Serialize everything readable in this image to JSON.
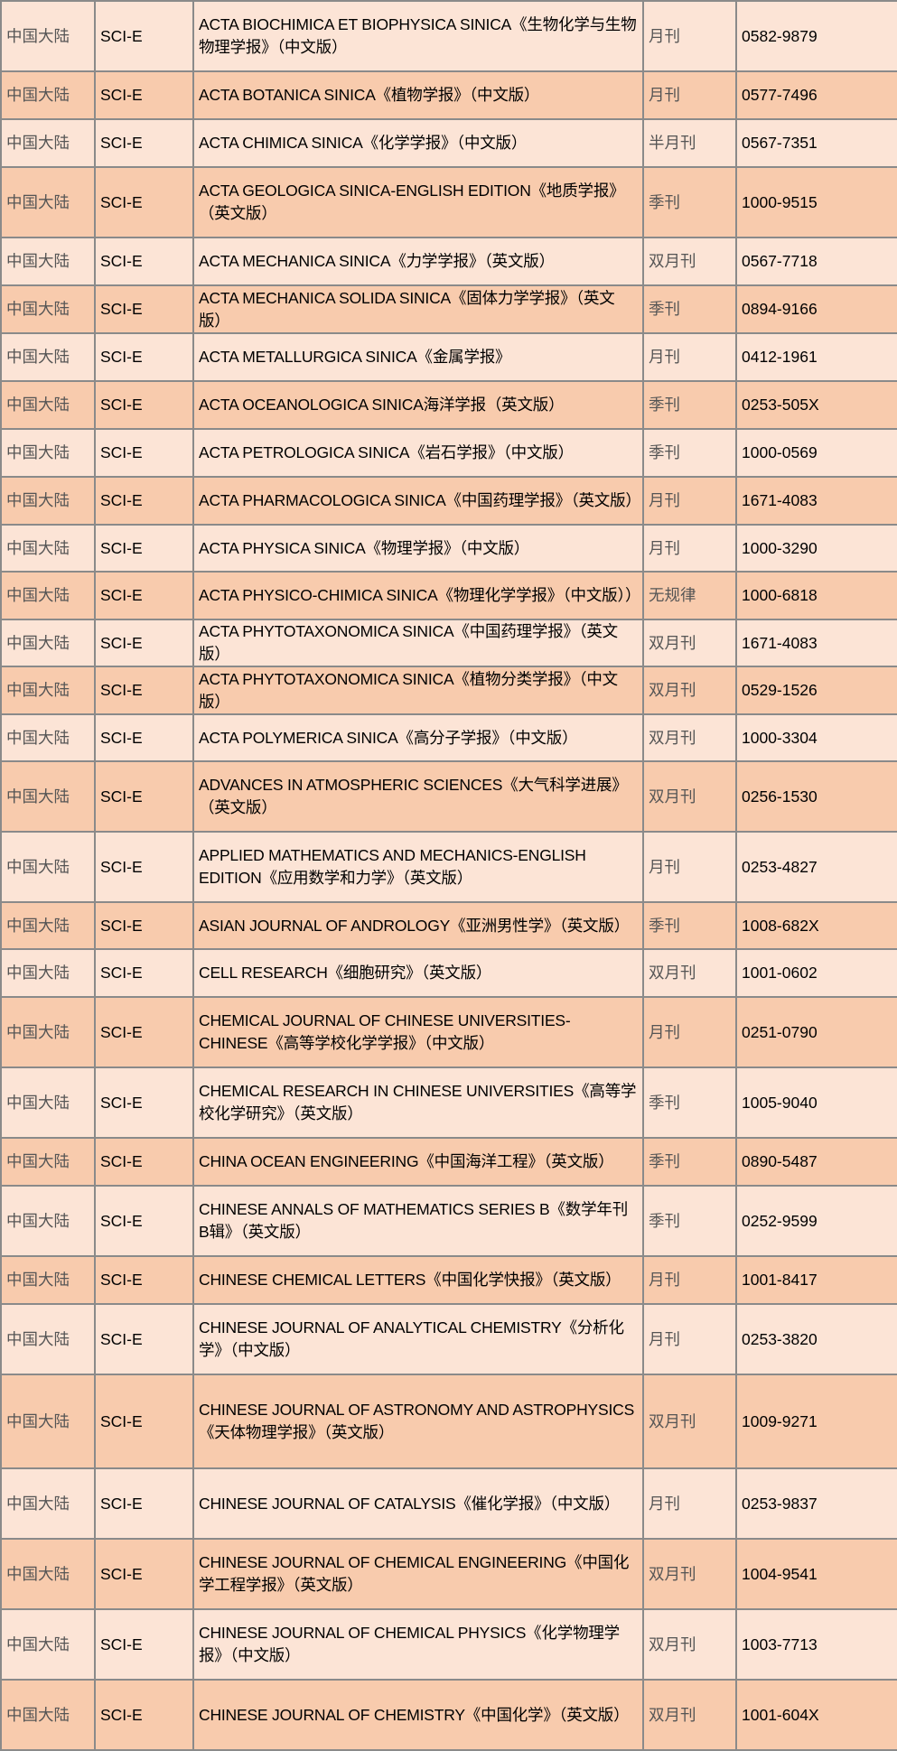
{
  "colors": {
    "light_row": "#fce4d6",
    "dark_row": "#f8cbad",
    "border": "#8a8a8a"
  },
  "rows": [
    {
      "region": "中国大陆",
      "index": "SCI-E",
      "title": "ACTA BIOCHIMICA ET BIOPHYSICA SINICA《生物化学与生物物理学报》（中文版）",
      "frequency": "月刊",
      "issn": "0582-9879",
      "h": 78
    },
    {
      "region": "中国大陆",
      "index": "SCI-E",
      "title": "ACTA BOTANICA SINICA《植物学报》（中文版）",
      "frequency": "月刊",
      "issn": "0577-7496",
      "h": 53
    },
    {
      "region": "中国大陆",
      "index": "SCI-E",
      "title": "ACTA CHIMICA SINICA《化学学报》（中文版）",
      "frequency": "半月刊",
      "issn": "0567-7351",
      "h": 53
    },
    {
      "region": "中国大陆",
      "index": "SCI-E",
      "title": "ACTA GEOLOGICA SINICA-ENGLISH EDITION《地质学报》（英文版）",
      "frequency": "季刊",
      "issn": "1000-9515",
      "h": 78
    },
    {
      "region": "中国大陆",
      "index": "SCI-E",
      "title": "ACTA MECHANICA SINICA《力学学报》（英文版）",
      "frequency": "双月刊",
      "issn": "0567-7718",
      "h": 53
    },
    {
      "region": "中国大陆",
      "index": "SCI-E",
      "title": "ACTA MECHANICA SOLIDA SINICA《固体力学学报》（英文版）",
      "frequency": "季刊",
      "issn": "0894-9166",
      "h": 53
    },
    {
      "region": "中国大陆",
      "index": "SCI-E",
      "title": "ACTA METALLURGICA SINICA《金属学报》",
      "frequency": "月刊",
      "issn": "0412-1961",
      "h": 53
    },
    {
      "region": "中国大陆",
      "index": "SCI-E",
      "title": "ACTA OCEANOLOGICA SINICA海洋学报（英文版）",
      "frequency": "季刊",
      "issn": "0253-505X",
      "h": 53
    },
    {
      "region": "中国大陆",
      "index": "SCI-E",
      "title": "ACTA PETROLOGICA SINICA《岩石学报》（中文版）",
      "frequency": "季刊",
      "issn": "1000-0569",
      "h": 53
    },
    {
      "region": "中国大陆",
      "index": "SCI-E",
      "title": "ACTA PHARMACOLOGICA SINICA《中国药理学报》（英文版）",
      "frequency": "月刊",
      "issn": "1671-4083",
      "h": 53
    },
    {
      "region": "中国大陆",
      "index": "SCI-E",
      "title": "ACTA PHYSICA SINICA《物理学报》（中文版）",
      "frequency": "月刊",
      "issn": "1000-3290",
      "h": 52
    },
    {
      "region": "中国大陆",
      "index": "SCI-E",
      "title": "ACTA PHYSICO-CHIMICA SINICA《物理化学学报》（中文版））",
      "frequency": "无规律",
      "issn": "1000-6818",
      "h": 53
    },
    {
      "region": "中国大陆",
      "index": "SCI-E",
      "title": "ACTA PHYTOTAXONOMICA SINICA《中国药理学报》（英文版）",
      "frequency": "双月刊",
      "issn": "1671-4083",
      "h": 52
    },
    {
      "region": "中国大陆",
      "index": "SCI-E",
      "title": "ACTA PHYTOTAXONOMICA SINICA《植物分类学报》（中文版）",
      "frequency": "双月刊",
      "issn": "0529-1526",
      "h": 53
    },
    {
      "region": "中国大陆",
      "index": "SCI-E",
      "title": "ACTA POLYMERICA SINICA《高分子学报》（中文版）",
      "frequency": "双月刊",
      "issn": "1000-3304",
      "h": 52
    },
    {
      "region": "中国大陆",
      "index": "SCI-E",
      "title": "ADVANCES IN ATMOSPHERIC SCIENCES《大气科学进展》（英文版）",
      "frequency": "双月刊",
      "issn": "0256-1530",
      "h": 78
    },
    {
      "region": "中国大陆",
      "index": "SCI-E",
      "title": "APPLIED MATHEMATICS AND MECHANICS-ENGLISH EDITION《应用数学和力学》（英文版）",
      "frequency": "月刊",
      "issn": "0253-4827",
      "h": 78
    },
    {
      "region": "中国大陆",
      "index": "SCI-E",
      "title": "ASIAN JOURNAL OF ANDROLOGY《亚洲男性学》（英文版）",
      "frequency": "季刊",
      "issn": "1008-682X",
      "h": 52
    },
    {
      "region": "中国大陆",
      "index": "SCI-E",
      "title": "CELL RESEARCH《细胞研究》（英文版）",
      "frequency": "双月刊",
      "issn": "1001-0602",
      "h": 53
    },
    {
      "region": "中国大陆",
      "index": "SCI-E",
      "title": "CHEMICAL JOURNAL OF CHINESE UNIVERSITIES-CHINESE《高等学校化学学报》（中文版）",
      "frequency": "月刊",
      "issn": "0251-0790",
      "h": 78
    },
    {
      "region": "中国大陆",
      "index": "SCI-E",
      "title": "CHEMICAL RESEARCH IN CHINESE UNIVERSITIES《高等学校化学研究》（英文版）",
      "frequency": "季刊",
      "issn": "1005-9040",
      "h": 78
    },
    {
      "region": "中国大陆",
      "index": "SCI-E",
      "title": "CHINA OCEAN ENGINEERING《中国海洋工程》（英文版）",
      "frequency": "季刊",
      "issn": "0890-5487",
      "h": 53
    },
    {
      "region": "中国大陆",
      "index": "SCI-E",
      "title": "CHINESE ANNALS OF MATHEMATICS SERIES B《数学年刊B辑》（英文版）",
      "frequency": "季刊",
      "issn": "0252-9599",
      "h": 78
    },
    {
      "region": "中国大陆",
      "index": "SCI-E",
      "title": "CHINESE CHEMICAL LETTERS《中国化学快报》（英文版）",
      "frequency": "月刊",
      "issn": "1001-8417",
      "h": 53
    },
    {
      "region": "中国大陆",
      "index": "SCI-E",
      "title": "CHINESE JOURNAL OF ANALYTICAL CHEMISTRY《分析化学》（中文版）",
      "frequency": "月刊",
      "issn": "0253-3820",
      "h": 78
    },
    {
      "region": "中国大陆",
      "index": "SCI-E",
      "title": "CHINESE JOURNAL OF ASTRONOMY AND ASTROPHYSICS《天体物理学报》（英文版）",
      "frequency": "双月刊",
      "issn": "1009-9271",
      "h": 104
    },
    {
      "region": "中国大陆",
      "index": "SCI-E",
      "title": "CHINESE JOURNAL OF CATALYSIS《催化学报》（中文版）",
      "frequency": "月刊",
      "issn": "0253-9837",
      "h": 78
    },
    {
      "region": "中国大陆",
      "index": "SCI-E",
      "title": "CHINESE JOURNAL OF CHEMICAL ENGINEERING《中国化学工程学报》（英文版）",
      "frequency": "双月刊",
      "issn": "1004-9541",
      "h": 78
    },
    {
      "region": "中国大陆",
      "index": "SCI-E",
      "title": "CHINESE JOURNAL OF CHEMICAL PHYSICS《化学物理学报》（中文版）",
      "frequency": "双月刊",
      "issn": "1003-7713",
      "h": 78
    },
    {
      "region": "中国大陆",
      "index": "SCI-E",
      "title": "CHINESE JOURNAL OF CHEMISTRY《中国化学》（英文版）",
      "frequency": "双月刊",
      "issn": "1001-604X",
      "h": 78
    }
  ]
}
